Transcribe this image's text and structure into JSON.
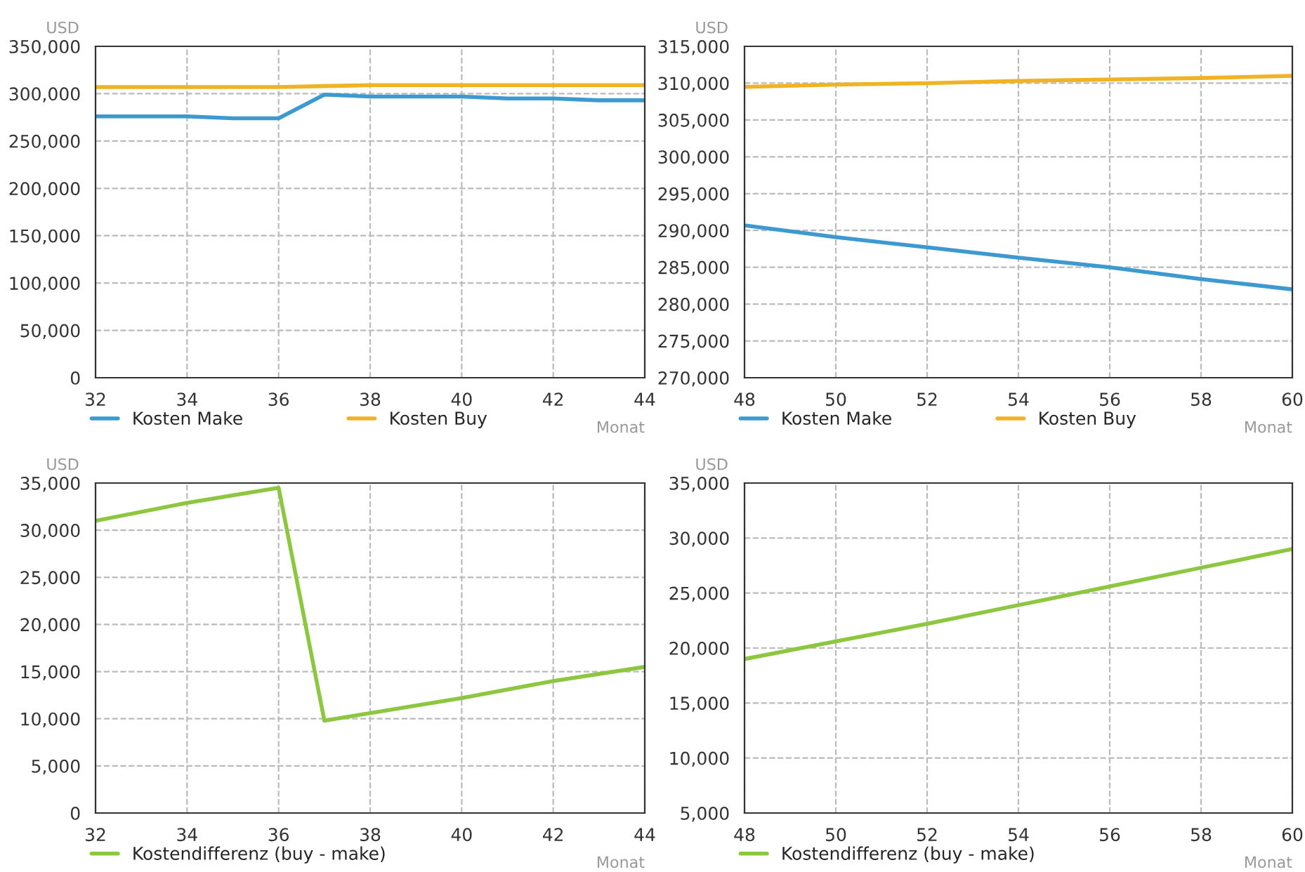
{
  "chart_data": [
    {
      "type": "line",
      "xlabel": "Monat",
      "ylabel": "USD",
      "xlim": [
        32,
        44
      ],
      "xticks": [
        32,
        34,
        36,
        38,
        40,
        42,
        44
      ],
      "ylim": [
        0,
        350000
      ],
      "yticks": [
        0,
        {
          "value": 50000,
          "label": "50,000"
        },
        {
          "value": 100000,
          "label": "100,000"
        },
        {
          "value": 150000,
          "label": "150,000"
        },
        {
          "value": 200000,
          "label": "200,000"
        },
        {
          "value": 250000,
          "label": "250,000"
        },
        {
          "value": 300000,
          "label": "300,000"
        },
        {
          "value": 350000,
          "label": "350,000"
        }
      ],
      "grid": true,
      "legend": "bottom",
      "line_style": "solid",
      "x": [
        32,
        33,
        34,
        35,
        36,
        37,
        38,
        39,
        40,
        41,
        42,
        43,
        44
      ],
      "series": [
        {
          "name": "Kosten Make",
          "color": "#3d9ad1",
          "values": [
            276000,
            276000,
            276000,
            274000,
            274000,
            299000,
            297000,
            297000,
            297000,
            295000,
            295000,
            293000,
            293000
          ]
        },
        {
          "name": "Kosten Buy",
          "color": "#f0b323",
          "values": [
            307000,
            307000,
            307000,
            307000,
            307000,
            308000,
            309000,
            309000,
            309000,
            309000,
            309000,
            309000,
            309000
          ]
        }
      ]
    },
    {
      "type": "line",
      "xlabel": "Monat",
      "ylabel": "USD",
      "xlim": [
        48,
        60
      ],
      "xticks": [
        48,
        50,
        52,
        54,
        56,
        58,
        60
      ],
      "ylim": [
        270000,
        315000
      ],
      "yticks": [
        {
          "value": 270000,
          "label": "270,000"
        },
        {
          "value": 275000,
          "label": "275,000"
        },
        {
          "value": 280000,
          "label": "280,000"
        },
        {
          "value": 285000,
          "label": "285,000"
        },
        {
          "value": 290000,
          "label": "290,000"
        },
        {
          "value": 295000,
          "label": "295,000"
        },
        {
          "value": 300000,
          "label": "300,000"
        },
        {
          "value": 305000,
          "label": "305,000"
        },
        {
          "value": 310000,
          "label": "310,000"
        },
        {
          "value": 315000,
          "label": "315,000"
        }
      ],
      "grid": true,
      "legend": "bottom",
      "line_style": "solid",
      "x": [
        48,
        50,
        52,
        54,
        56,
        58,
        60
      ],
      "series": [
        {
          "name": "Kosten Make",
          "color": "#3d9ad1",
          "values": [
            290700,
            289100,
            287700,
            286300,
            285000,
            283400,
            282000
          ]
        },
        {
          "name": "Kosten Buy",
          "color": "#f0b323",
          "values": [
            309500,
            309800,
            310000,
            310300,
            310500,
            310700,
            311000
          ]
        }
      ]
    },
    {
      "type": "line",
      "xlabel": "Monat",
      "ylabel": "USD",
      "xlim": [
        32,
        44
      ],
      "xticks": [
        32,
        34,
        36,
        38,
        40,
        42,
        44
      ],
      "ylim": [
        0,
        35000
      ],
      "yticks": [
        0,
        {
          "value": 5000,
          "label": "5,000"
        },
        {
          "value": 10000,
          "label": "10,000"
        },
        {
          "value": 15000,
          "label": "15,000"
        },
        {
          "value": 20000,
          "label": "20,000"
        },
        {
          "value": 25000,
          "label": "25,000"
        },
        {
          "value": 30000,
          "label": "30,000"
        },
        {
          "value": 35000,
          "label": "35,000"
        }
      ],
      "grid": true,
      "legend": "bottom",
      "line_style": "solid",
      "x": [
        32,
        34,
        36,
        37,
        38,
        40,
        42,
        44
      ],
      "series": [
        {
          "name": "Kostendifferenz (buy - make)",
          "color": "#8dc63f",
          "values": [
            31000,
            32900,
            34500,
            9800,
            10600,
            12200,
            14000,
            15500
          ]
        }
      ]
    },
    {
      "type": "line",
      "xlabel": "Monat",
      "ylabel": "USD",
      "xlim": [
        48,
        60
      ],
      "xticks": [
        48,
        50,
        52,
        54,
        56,
        58,
        60
      ],
      "ylim": [
        5000,
        35000
      ],
      "yticks": [
        {
          "value": 5000,
          "label": "5,000"
        },
        {
          "value": 10000,
          "label": "10,000"
        },
        {
          "value": 15000,
          "label": "15,000"
        },
        {
          "value": 20000,
          "label": "20,000"
        },
        {
          "value": 25000,
          "label": "25,000"
        },
        {
          "value": 30000,
          "label": "30,000"
        },
        {
          "value": 35000,
          "label": "35,000"
        }
      ],
      "grid": true,
      "legend": "bottom",
      "line_style": "solid",
      "x": [
        48,
        50,
        52,
        54,
        56,
        58,
        60
      ],
      "series": [
        {
          "name": "Kostendifferenz (buy - make)",
          "color": "#8dc63f",
          "values": [
            19000,
            20600,
            22200,
            23900,
            25600,
            27300,
            29000
          ]
        }
      ]
    }
  ]
}
